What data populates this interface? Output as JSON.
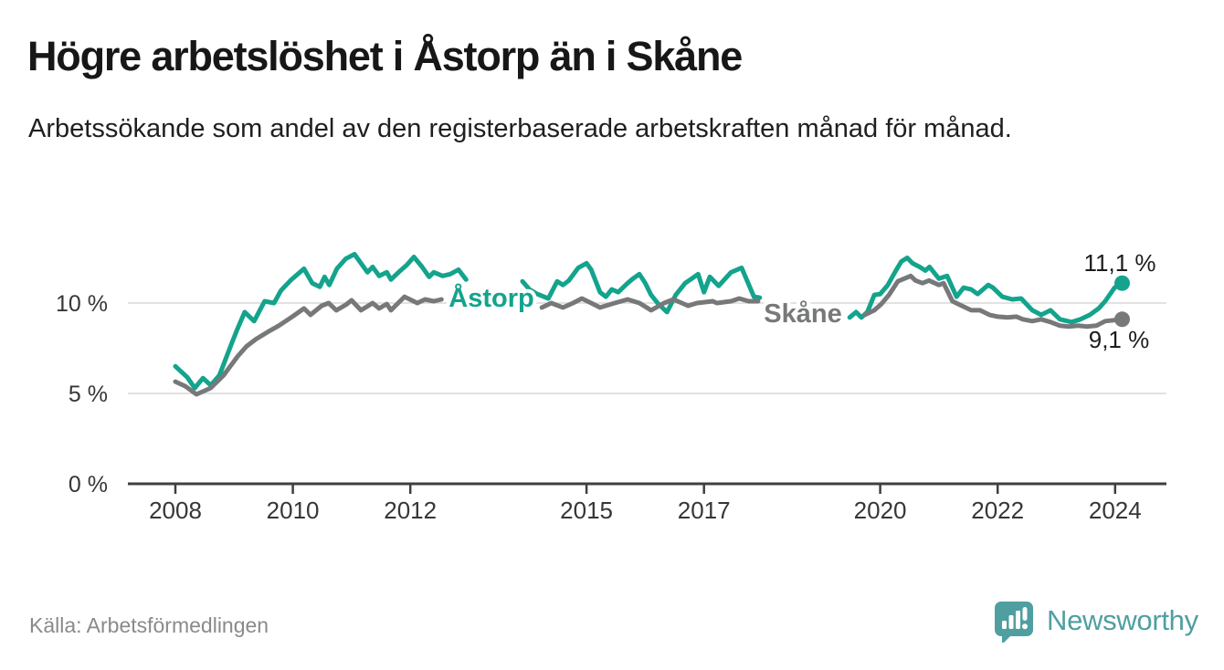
{
  "header": {
    "title": "Högre arbetslöshet i Åstorp än i Skåne",
    "subtitle": "Arbetssökande som andel av den registerbaserade arbetskraften månad för månad."
  },
  "footer": {
    "source": "Källa: Arbetsförmedlingen",
    "brand": "Newsworthy"
  },
  "chart_data": {
    "type": "line",
    "x_unit": "year (monthly data)",
    "ylabel": "",
    "xlabel": "",
    "x_range": [
      2007.2,
      2024.9
    ],
    "y_range": [
      0,
      13.2
    ],
    "grid": "horizontal",
    "legend_position": "inline-labels",
    "x_ticks": [
      {
        "year": 2008,
        "label": "2008"
      },
      {
        "year": 2010,
        "label": "2010"
      },
      {
        "year": 2012,
        "label": "2012"
      },
      {
        "year": 2015,
        "label": "2015"
      },
      {
        "year": 2017,
        "label": "2017"
      },
      {
        "year": 2020,
        "label": "2020"
      },
      {
        "year": 2022,
        "label": "2022"
      },
      {
        "year": 2024,
        "label": "2024"
      }
    ],
    "y_ticks": [
      {
        "value": 0,
        "label": "0 %"
      },
      {
        "value": 5,
        "label": "5 %"
      },
      {
        "value": 10,
        "label": "10 %"
      }
    ],
    "style": {
      "grid_color": "#d9d9d9",
      "axis_color": "#3f3f3f",
      "axis_text_color": "#363636",
      "value_label_color": "#1c1c1c",
      "accent_teal": "#14a38c",
      "accent_gray": "#77787a",
      "brand_teal": "#4f9fa0"
    },
    "series": [
      {
        "id": "astorp",
        "name": "Åstorp",
        "color": "#14a38c",
        "end_label": "11,1 %",
        "end_value": 11.1,
        "segments": [
          [
            [
              2008.0,
              6.5
            ],
            [
              2008.2,
              5.9
            ],
            [
              2008.33,
              5.3
            ],
            [
              2008.47,
              5.85
            ],
            [
              2008.6,
              5.45
            ],
            [
              2008.75,
              6.0
            ],
            [
              2008.95,
              7.7
            ],
            [
              2009.06,
              8.6
            ],
            [
              2009.18,
              9.5
            ],
            [
              2009.34,
              9.0
            ],
            [
              2009.52,
              10.1
            ],
            [
              2009.68,
              10.0
            ],
            [
              2009.8,
              10.7
            ],
            [
              2009.96,
              11.25
            ],
            [
              2010.19,
              11.9
            ],
            [
              2010.33,
              11.1
            ],
            [
              2010.46,
              10.9
            ],
            [
              2010.54,
              11.45
            ],
            [
              2010.62,
              11.0
            ],
            [
              2010.75,
              11.9
            ],
            [
              2010.9,
              12.45
            ],
            [
              2011.05,
              12.7
            ],
            [
              2011.27,
              11.7
            ],
            [
              2011.36,
              12.0
            ],
            [
              2011.47,
              11.5
            ],
            [
              2011.6,
              11.7
            ],
            [
              2011.67,
              11.3
            ],
            [
              2011.8,
              11.7
            ],
            [
              2011.94,
              12.1
            ],
            [
              2012.06,
              12.55
            ],
            [
              2012.2,
              12.0
            ],
            [
              2012.32,
              11.45
            ],
            [
              2012.4,
              11.7
            ],
            [
              2012.55,
              11.5
            ],
            [
              2012.68,
              11.6
            ],
            [
              2012.82,
              11.85
            ],
            [
              2012.95,
              11.3
            ]
          ],
          [
            [
              2013.91,
              11.2
            ],
            [
              2014.03,
              10.75
            ],
            [
              2014.16,
              10.5
            ],
            [
              2014.35,
              10.25
            ],
            [
              2014.5,
              11.2
            ],
            [
              2014.6,
              11.0
            ],
            [
              2014.7,
              11.25
            ],
            [
              2014.86,
              11.95
            ],
            [
              2015.0,
              12.2
            ],
            [
              2015.08,
              11.85
            ],
            [
              2015.23,
              10.6
            ],
            [
              2015.33,
              10.35
            ],
            [
              2015.43,
              10.75
            ],
            [
              2015.54,
              10.6
            ],
            [
              2015.7,
              11.1
            ],
            [
              2015.79,
              11.35
            ],
            [
              2015.9,
              11.6
            ],
            [
              2016.0,
              11.1
            ],
            [
              2016.1,
              10.45
            ],
            [
              2016.21,
              10.0
            ],
            [
              2016.37,
              9.5
            ],
            [
              2016.52,
              10.45
            ],
            [
              2016.68,
              11.1
            ],
            [
              2016.79,
              11.35
            ],
            [
              2016.9,
              11.6
            ],
            [
              2017.0,
              10.6
            ],
            [
              2017.1,
              11.45
            ],
            [
              2017.25,
              10.95
            ],
            [
              2017.46,
              11.7
            ],
            [
              2017.64,
              11.95
            ],
            [
              2017.85,
              10.35
            ],
            [
              2017.95,
              10.3
            ]
          ],
          [
            [
              2019.48,
              9.2
            ],
            [
              2019.59,
              9.5
            ],
            [
              2019.68,
              9.2
            ],
            [
              2019.78,
              9.5
            ],
            [
              2019.9,
              10.45
            ],
            [
              2020.0,
              10.5
            ],
            [
              2020.13,
              11.0
            ],
            [
              2020.25,
              11.7
            ],
            [
              2020.36,
              12.3
            ],
            [
              2020.46,
              12.5
            ],
            [
              2020.55,
              12.2
            ],
            [
              2020.67,
              12.0
            ],
            [
              2020.77,
              11.8
            ],
            [
              2020.84,
              12.0
            ],
            [
              2021.0,
              11.35
            ],
            [
              2021.14,
              11.5
            ],
            [
              2021.3,
              10.35
            ],
            [
              2021.42,
              10.85
            ],
            [
              2021.55,
              10.75
            ],
            [
              2021.66,
              10.5
            ],
            [
              2021.84,
              11.0
            ],
            [
              2021.92,
              10.85
            ],
            [
              2022.08,
              10.35
            ],
            [
              2022.25,
              10.2
            ],
            [
              2022.4,
              10.25
            ],
            [
              2022.59,
              9.6
            ],
            [
              2022.74,
              9.35
            ],
            [
              2022.9,
              9.6
            ],
            [
              2023.06,
              9.1
            ],
            [
              2023.26,
              8.95
            ],
            [
              2023.41,
              9.1
            ],
            [
              2023.57,
              9.35
            ],
            [
              2023.72,
              9.7
            ],
            [
              2023.83,
              10.1
            ],
            [
              2023.99,
              10.85
            ],
            [
              2024.12,
              11.1
            ]
          ]
        ]
      },
      {
        "id": "skane",
        "name": "Skåne",
        "color": "#77787a",
        "end_label": "9,1 %",
        "end_value": 9.1,
        "segments": [
          [
            [
              2008.0,
              5.65
            ],
            [
              2008.17,
              5.4
            ],
            [
              2008.36,
              4.95
            ],
            [
              2008.6,
              5.3
            ],
            [
              2008.82,
              6.0
            ],
            [
              2009.06,
              7.05
            ],
            [
              2009.21,
              7.6
            ],
            [
              2009.37,
              8.0
            ],
            [
              2009.57,
              8.4
            ],
            [
              2009.76,
              8.75
            ],
            [
              2009.99,
              9.25
            ],
            [
              2010.19,
              9.7
            ],
            [
              2010.3,
              9.35
            ],
            [
              2010.49,
              9.85
            ],
            [
              2010.61,
              10.0
            ],
            [
              2010.74,
              9.6
            ],
            [
              2010.9,
              9.9
            ],
            [
              2011.0,
              10.15
            ],
            [
              2011.16,
              9.6
            ],
            [
              2011.36,
              10.0
            ],
            [
              2011.47,
              9.7
            ],
            [
              2011.6,
              9.95
            ],
            [
              2011.67,
              9.6
            ],
            [
              2011.9,
              10.35
            ],
            [
              2012.12,
              10.0
            ],
            [
              2012.25,
              10.2
            ],
            [
              2012.4,
              10.1
            ],
            [
              2012.53,
              10.2
            ]
          ],
          [
            [
              2014.24,
              9.75
            ],
            [
              2014.4,
              10.0
            ],
            [
              2014.6,
              9.75
            ],
            [
              2014.77,
              10.0
            ],
            [
              2014.92,
              10.25
            ],
            [
              2015.08,
              10.0
            ],
            [
              2015.23,
              9.75
            ],
            [
              2015.48,
              10.0
            ],
            [
              2015.7,
              10.2
            ],
            [
              2015.9,
              10.0
            ],
            [
              2016.1,
              9.6
            ],
            [
              2016.32,
              10.0
            ],
            [
              2016.48,
              10.2
            ],
            [
              2016.73,
              9.85
            ],
            [
              2016.88,
              10.0
            ],
            [
              2017.15,
              10.1
            ],
            [
              2017.22,
              10.0
            ],
            [
              2017.46,
              10.1
            ],
            [
              2017.6,
              10.25
            ],
            [
              2017.76,
              10.1
            ],
            [
              2017.92,
              10.1
            ]
          ],
          [
            [
              2019.74,
              9.35
            ],
            [
              2019.9,
              9.6
            ],
            [
              2020.02,
              9.95
            ],
            [
              2020.15,
              10.45
            ],
            [
              2020.3,
              11.2
            ],
            [
              2020.52,
              11.5
            ],
            [
              2020.6,
              11.25
            ],
            [
              2020.72,
              11.1
            ],
            [
              2020.83,
              11.25
            ],
            [
              2021.0,
              11.0
            ],
            [
              2021.08,
              11.1
            ],
            [
              2021.23,
              10.1
            ],
            [
              2021.39,
              9.85
            ],
            [
              2021.55,
              9.6
            ],
            [
              2021.7,
              9.6
            ],
            [
              2021.86,
              9.35
            ],
            [
              2022.0,
              9.25
            ],
            [
              2022.17,
              9.2
            ],
            [
              2022.32,
              9.25
            ],
            [
              2022.43,
              9.1
            ],
            [
              2022.59,
              9.0
            ],
            [
              2022.74,
              9.1
            ],
            [
              2022.9,
              8.95
            ],
            [
              2023.06,
              8.75
            ],
            [
              2023.21,
              8.7
            ],
            [
              2023.37,
              8.75
            ],
            [
              2023.52,
              8.7
            ],
            [
              2023.68,
              8.75
            ],
            [
              2023.83,
              9.0
            ],
            [
              2024.12,
              9.1
            ]
          ]
        ]
      }
    ]
  }
}
